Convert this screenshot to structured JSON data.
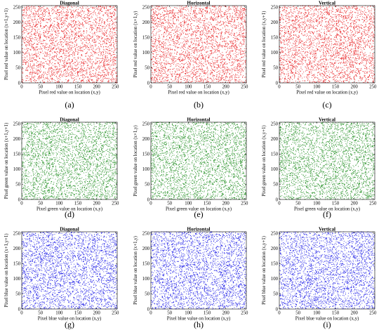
{
  "figure": {
    "panel_labels": [
      "(a)",
      "(b)",
      "(c)",
      "(d)",
      "(e)",
      "(f)",
      "(g)",
      "(h)",
      "(i)"
    ]
  },
  "chart_data": [
    {
      "type": "scatter",
      "title": "Diagonal",
      "xlabel": "Pixel red value on location (x,y)",
      "ylabel": "Pixel red value on location (x+1,y+1)",
      "xlim": [
        0,
        255
      ],
      "ylim": [
        0,
        255
      ],
      "xticks": [
        0,
        50,
        100,
        150,
        200,
        250
      ],
      "yticks": [
        0,
        50,
        100,
        150,
        200,
        250
      ],
      "color": "#e8191c",
      "num_points": 3000,
      "seed": 11,
      "label": "(a)"
    },
    {
      "type": "scatter",
      "title": "Horizontal",
      "xlabel": "Pixel red value on location (x,y)",
      "ylabel": "Pixel red value on location (x+1,y)",
      "xlim": [
        0,
        255
      ],
      "ylim": [
        0,
        255
      ],
      "xticks": [
        0,
        50,
        100,
        150,
        200,
        250
      ],
      "yticks": [
        0,
        50,
        100,
        150,
        200,
        250
      ],
      "color": "#e8191c",
      "num_points": 3000,
      "seed": 23,
      "label": "(b)"
    },
    {
      "type": "scatter",
      "title": "Vertical",
      "xlabel": "Pixel red value on location (x,y)",
      "ylabel": "Pixel red value on location (x,y+1)",
      "xlim": [
        0,
        255
      ],
      "ylim": [
        0,
        255
      ],
      "xticks": [
        0,
        50,
        100,
        150,
        200,
        250
      ],
      "yticks": [
        0,
        50,
        100,
        150,
        200,
        250
      ],
      "color": "#e8191c",
      "num_points": 3000,
      "seed": 37,
      "label": "(c)"
    },
    {
      "type": "scatter",
      "title": "Diagonal",
      "xlabel": "Pixel green value on location (x,y)",
      "ylabel": "Pixel green value on location (x+1,y+1)",
      "xlim": [
        0,
        255
      ],
      "ylim": [
        0,
        255
      ],
      "xticks": [
        0,
        50,
        100,
        150,
        200,
        250
      ],
      "yticks": [
        0,
        50,
        100,
        150,
        200,
        250
      ],
      "color": "#1c8c1c",
      "num_points": 3000,
      "seed": 41,
      "label": "(d)"
    },
    {
      "type": "scatter",
      "title": "Horizontal",
      "xlabel": "Pixel green value on location (x,y)",
      "ylabel": "Pixel green value on location (x+1,y)",
      "xlim": [
        0,
        255
      ],
      "ylim": [
        0,
        255
      ],
      "xticks": [
        0,
        50,
        100,
        150,
        200,
        250
      ],
      "yticks": [
        0,
        50,
        100,
        150,
        200,
        250
      ],
      "color": "#1c8c1c",
      "num_points": 3000,
      "seed": 53,
      "label": "(e)"
    },
    {
      "type": "scatter",
      "title": "Vertical",
      "xlabel": "Pixel green value on location (x,y)",
      "ylabel": "Pixel green value on location (x,y+1)",
      "xlim": [
        0,
        255
      ],
      "ylim": [
        0,
        255
      ],
      "xticks": [
        0,
        50,
        100,
        150,
        200,
        250
      ],
      "yticks": [
        0,
        50,
        100,
        150,
        200,
        250
      ],
      "color": "#1c8c1c",
      "num_points": 3000,
      "seed": 67,
      "label": "(f)"
    },
    {
      "type": "scatter",
      "title": "Diagonal",
      "xlabel": "Pixel blue value on location (x,y)",
      "ylabel": "Pixel blue value on location (x+1,y+1)",
      "xlim": [
        0,
        255
      ],
      "ylim": [
        0,
        255
      ],
      "xticks": [
        0,
        50,
        100,
        150,
        200,
        250
      ],
      "yticks": [
        0,
        50,
        100,
        150,
        200,
        250
      ],
      "color": "#1818e6",
      "num_points": 3000,
      "seed": 71,
      "label": "(g)"
    },
    {
      "type": "scatter",
      "title": "Horizontal",
      "xlabel": "Pixel blue value on location (x,y)",
      "ylabel": "Pixel blue value on location (x+1,y)",
      "xlim": [
        0,
        255
      ],
      "ylim": [
        0,
        255
      ],
      "xticks": [
        0,
        50,
        100,
        150,
        200,
        250
      ],
      "yticks": [
        0,
        50,
        100,
        150,
        200,
        250
      ],
      "color": "#1818e6",
      "num_points": 3000,
      "seed": 83,
      "label": "(h)"
    },
    {
      "type": "scatter",
      "title": "Vertical",
      "xlabel": "Pixel blue value on location (x,y)",
      "ylabel": "Pixel blue value on location (x,y+1)",
      "xlim": [
        0,
        255
      ],
      "ylim": [
        0,
        255
      ],
      "xticks": [
        0,
        50,
        100,
        150,
        200,
        250
      ],
      "yticks": [
        0,
        50,
        100,
        150,
        200,
        250
      ],
      "color": "#1818e6",
      "num_points": 3000,
      "seed": 97,
      "label": "(i)"
    }
  ]
}
